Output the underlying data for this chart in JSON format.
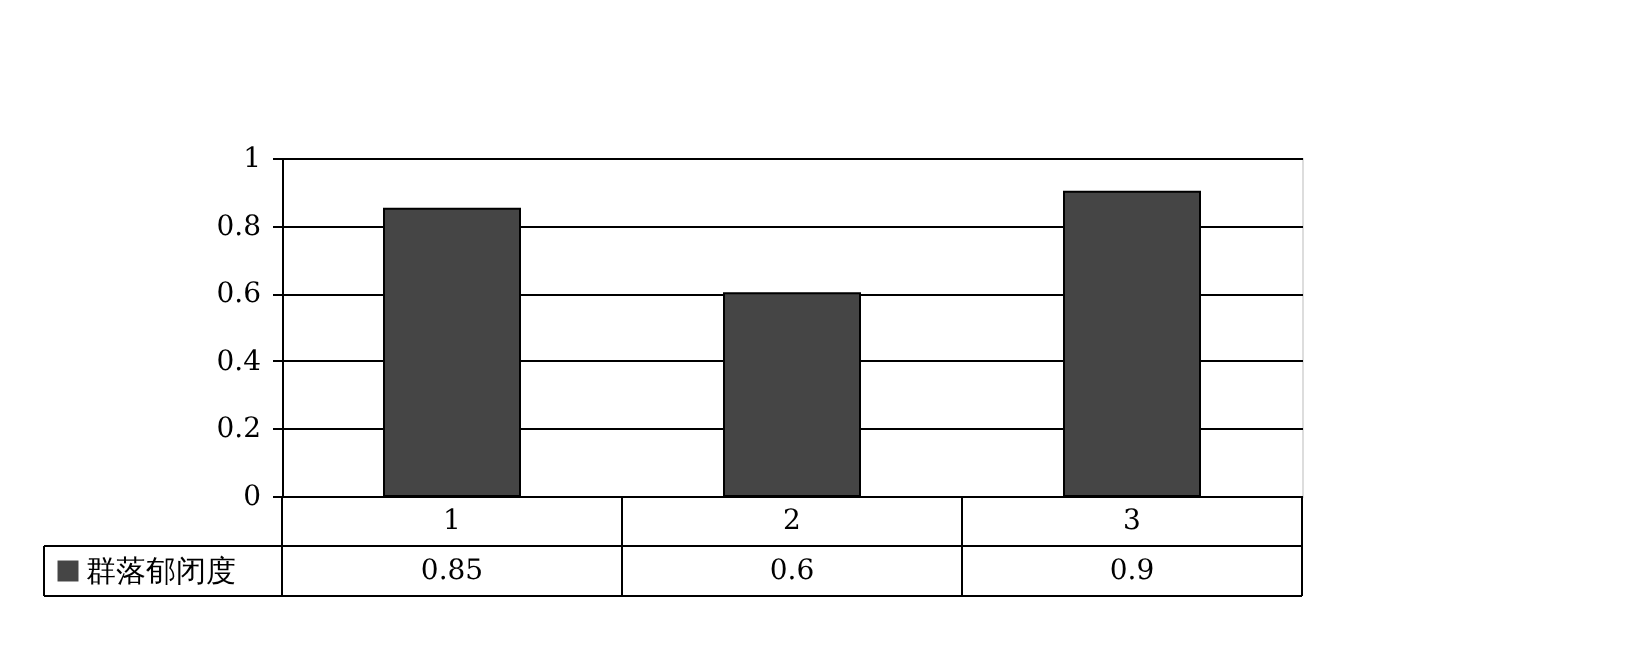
{
  "chart_data": {
    "type": "bar",
    "categories": [
      "1",
      "2",
      "3"
    ],
    "series": [
      {
        "name": "群落郁闭度",
        "color": "#454545",
        "values": [
          0.85,
          0.6,
          0.9
        ]
      }
    ],
    "ylim": [
      0,
      1
    ],
    "yticks": [
      0,
      0.2,
      0.4,
      0.6,
      0.8,
      1
    ],
    "grid": "y",
    "legend": "bottom",
    "data_labels": true
  }
}
